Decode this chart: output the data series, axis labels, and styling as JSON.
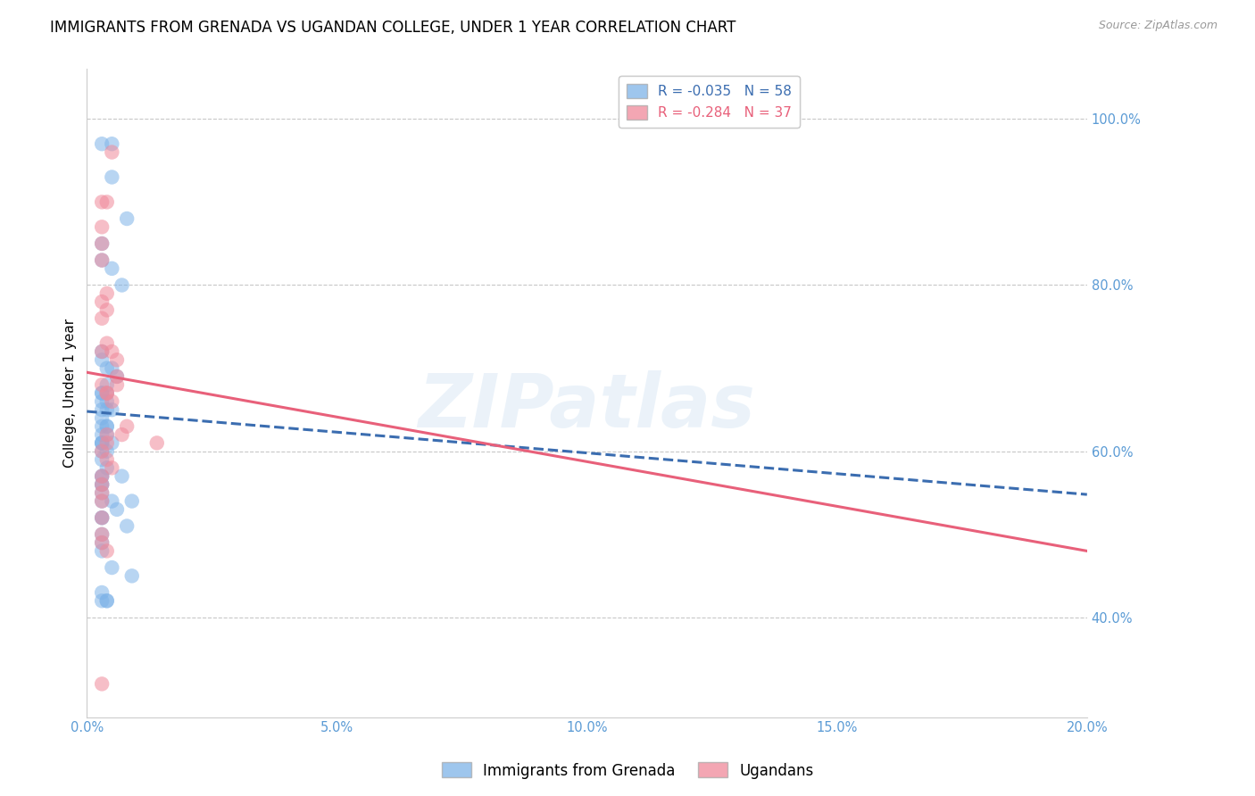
{
  "title": "IMMIGRANTS FROM GRENADA VS UGANDAN COLLEGE, UNDER 1 YEAR CORRELATION CHART",
  "source": "Source: ZipAtlas.com",
  "ylabel": "College, Under 1 year",
  "xlabel_ticks": [
    "0.0%",
    "5.0%",
    "10.0%",
    "15.0%",
    "20.0%"
  ],
  "xlabel_vals": [
    0.0,
    0.05,
    0.1,
    0.15,
    0.2
  ],
  "ylabel_ticks": [
    "40.0%",
    "60.0%",
    "80.0%",
    "100.0%"
  ],
  "ylabel_vals": [
    0.4,
    0.6,
    0.8,
    1.0
  ],
  "xlim": [
    0.0,
    0.2
  ],
  "ylim": [
    0.28,
    1.06
  ],
  "blue_color": "#7EB3E8",
  "pink_color": "#F0899A",
  "blue_line_color": "#3B6DB0",
  "pink_line_color": "#E8607A",
  "watermark": "ZIPatlas",
  "legend_entry_blue": "R = -0.035   N = 58",
  "legend_entry_pink": "R = -0.284   N = 37",
  "legend_labels": [
    "Immigrants from Grenada",
    "Ugandans"
  ],
  "blue_scatter_x": [
    0.003,
    0.005,
    0.005,
    0.008,
    0.003,
    0.003,
    0.005,
    0.007,
    0.003,
    0.003,
    0.004,
    0.005,
    0.006,
    0.004,
    0.003,
    0.003,
    0.004,
    0.003,
    0.004,
    0.003,
    0.004,
    0.005,
    0.003,
    0.003,
    0.004,
    0.004,
    0.004,
    0.003,
    0.003,
    0.003,
    0.003,
    0.005,
    0.003,
    0.004,
    0.003,
    0.004,
    0.003,
    0.003,
    0.007,
    0.003,
    0.003,
    0.003,
    0.005,
    0.003,
    0.009,
    0.006,
    0.003,
    0.003,
    0.008,
    0.003,
    0.003,
    0.003,
    0.005,
    0.009,
    0.003,
    0.004,
    0.003,
    0.004
  ],
  "blue_scatter_y": [
    0.97,
    0.97,
    0.93,
    0.88,
    0.85,
    0.83,
    0.82,
    0.8,
    0.72,
    0.71,
    0.7,
    0.7,
    0.69,
    0.68,
    0.67,
    0.67,
    0.67,
    0.66,
    0.66,
    0.65,
    0.65,
    0.65,
    0.64,
    0.63,
    0.63,
    0.63,
    0.62,
    0.62,
    0.61,
    0.61,
    0.61,
    0.61,
    0.6,
    0.6,
    0.59,
    0.58,
    0.57,
    0.57,
    0.57,
    0.56,
    0.56,
    0.55,
    0.54,
    0.54,
    0.54,
    0.53,
    0.52,
    0.52,
    0.51,
    0.5,
    0.49,
    0.48,
    0.46,
    0.45,
    0.43,
    0.42,
    0.42,
    0.42
  ],
  "pink_scatter_x": [
    0.005,
    0.003,
    0.004,
    0.003,
    0.003,
    0.003,
    0.004,
    0.003,
    0.004,
    0.003,
    0.004,
    0.003,
    0.005,
    0.006,
    0.006,
    0.003,
    0.006,
    0.004,
    0.004,
    0.005,
    0.008,
    0.004,
    0.007,
    0.004,
    0.003,
    0.004,
    0.005,
    0.003,
    0.003,
    0.003,
    0.003,
    0.003,
    0.014,
    0.003,
    0.003,
    0.004,
    0.003
  ],
  "pink_scatter_y": [
    0.96,
    0.9,
    0.9,
    0.87,
    0.85,
    0.83,
    0.79,
    0.78,
    0.77,
    0.76,
    0.73,
    0.72,
    0.72,
    0.71,
    0.69,
    0.68,
    0.68,
    0.67,
    0.67,
    0.66,
    0.63,
    0.62,
    0.62,
    0.61,
    0.6,
    0.59,
    0.58,
    0.57,
    0.56,
    0.55,
    0.54,
    0.52,
    0.61,
    0.5,
    0.49,
    0.48,
    0.32
  ],
  "blue_line_x0": 0.0,
  "blue_line_x1": 0.2,
  "blue_line_y0": 0.648,
  "blue_line_y1": 0.548,
  "pink_line_x0": 0.0,
  "pink_line_x1": 0.2,
  "pink_line_y0": 0.695,
  "pink_line_y1": 0.48,
  "right_axis_color": "#5B9BD5",
  "title_fontsize": 12,
  "axis_label_fontsize": 11,
  "tick_fontsize": 10.5
}
